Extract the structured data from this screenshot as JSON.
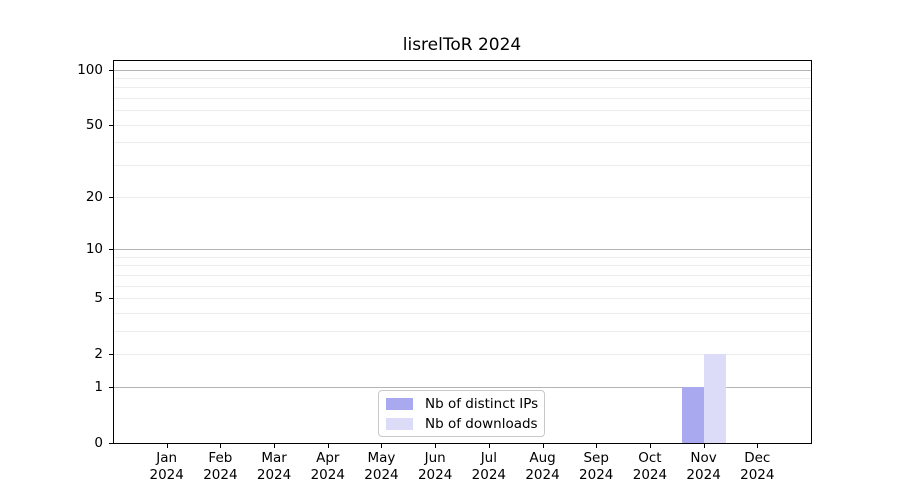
{
  "chart_data": {
    "type": "bar",
    "title": "lisrelToR 2024",
    "categories": [
      "Jan 2024",
      "Feb 2024",
      "Mar 2024",
      "Apr 2024",
      "May 2024",
      "Jun 2024",
      "Jul 2024",
      "Aug 2024",
      "Sep 2024",
      "Oct 2024",
      "Nov 2024",
      "Dec 2024"
    ],
    "series": [
      {
        "name": "Nb of distinct IPs",
        "color": "#a9a9f0",
        "values": [
          0,
          0,
          0,
          0,
          0,
          0,
          0,
          0,
          0,
          0,
          1,
          0
        ]
      },
      {
        "name": "Nb of downloads",
        "color": "#dcdcf8",
        "values": [
          0,
          0,
          0,
          0,
          0,
          0,
          0,
          0,
          0,
          0,
          2,
          0
        ]
      }
    ],
    "xlabel": "",
    "ylabel": "",
    "yscale": "log1p",
    "ylim": [
      0,
      113
    ],
    "yticks": [
      0,
      1,
      2,
      5,
      10,
      20,
      50,
      100
    ],
    "grid": {
      "on": true,
      "major_values": [
        1,
        10,
        100
      ],
      "minor_values": [
        2,
        3,
        4,
        5,
        6,
        7,
        8,
        9,
        20,
        30,
        40,
        50,
        60,
        70,
        80,
        90
      ],
      "major_color": "#b4b4b4",
      "minor_color": "#ececec"
    },
    "legend_position": "lower center (inside plot)"
  }
}
